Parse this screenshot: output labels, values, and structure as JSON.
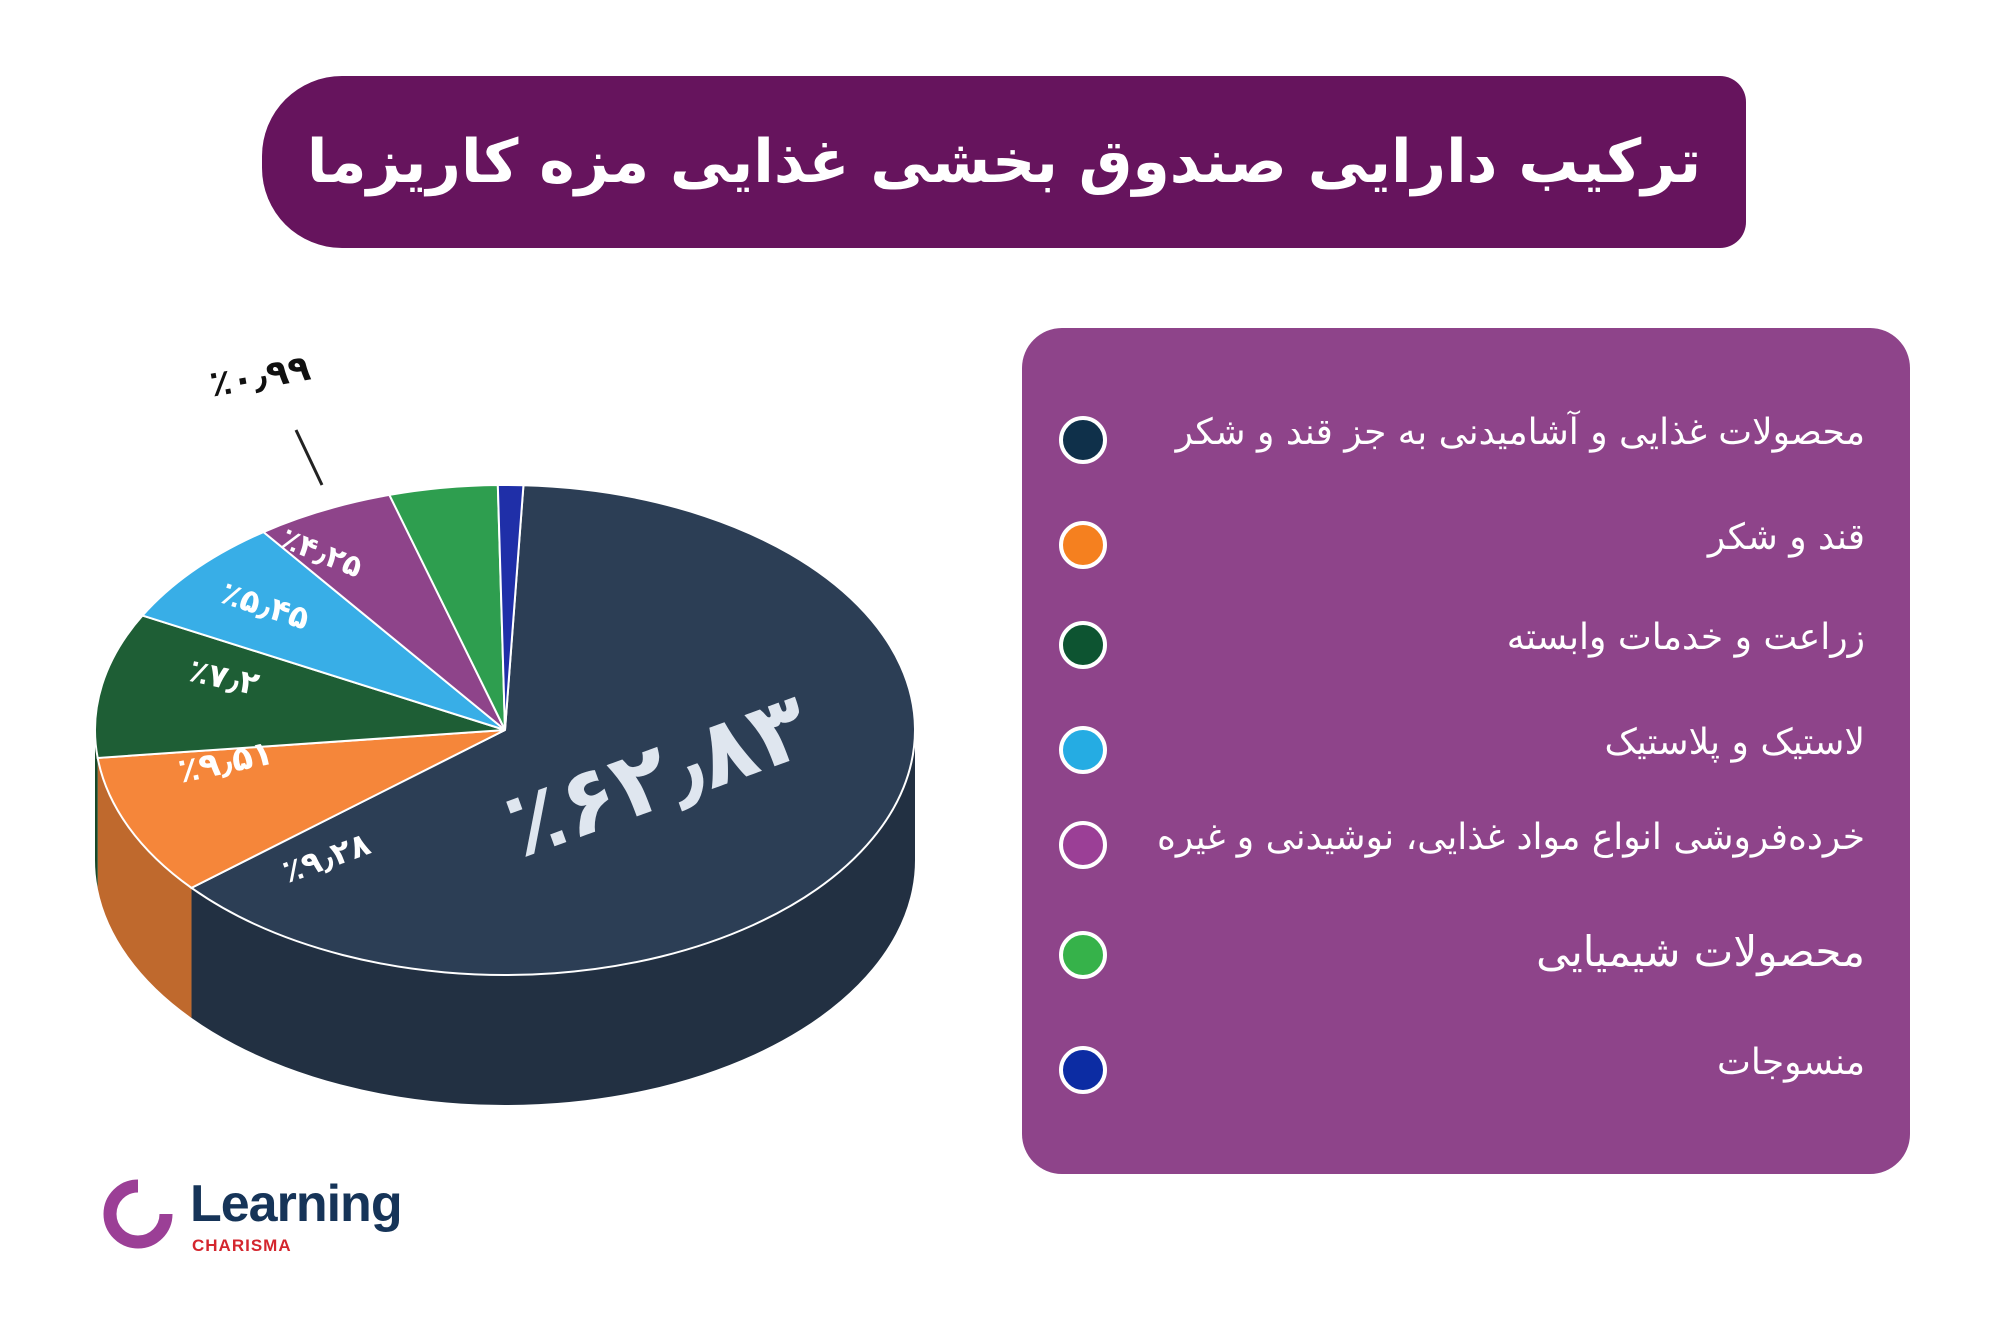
{
  "title": "ترکیب دارایی صندوق بخشی غذایی مزه کاریزما",
  "chart_data": {
    "type": "pie",
    "categories": [
      "محصولات غذایی و آشامیدنی به جز قند و شکر",
      "قند و شکر",
      "زراعت و خدمات وابسته",
      "لاستیک و پلاستیک",
      "خرده‌فروشی انواع مواد غذایی، نوشیدنی و غیره",
      "محصولات شیمیایی",
      "منسوجات"
    ],
    "values": [
      62.83,
      9.28,
      9.51,
      7.2,
      5.45,
      4.25,
      0.99
    ],
    "labels": [
      "٪۶۲٫۸۳",
      "٪۹٫۲۸",
      "٪۹٫۵۱",
      "٪۷٫۲",
      "٪۵٫۴۵",
      "٪۴٫۲۵",
      "٪۰٫۹۹"
    ],
    "colors": [
      "#2c3e55",
      "#f5863a",
      "#1e5e35",
      "#38aee7",
      "#8e448a",
      "#2e9e4f",
      "#1f2fa8"
    ],
    "legend_colors": [
      "#0f304a",
      "#f5801f",
      "#0d5431",
      "#25ace3",
      "#9b3f96",
      "#36b24a",
      "#0c2ca3"
    ],
    "legend_position": "right"
  },
  "legend": {
    "items": [
      {
        "label": "محصولات غذایی و آشامیدنی به جز قند و شکر"
      },
      {
        "label": "قند و شکر"
      },
      {
        "label": "زراعت و خدمات وابسته"
      },
      {
        "label": "لاستیک و پلاستیک"
      },
      {
        "label": "خرده‌فروشی انواع مواد غذایی، نوشیدنی و غیره"
      },
      {
        "label": "محصولات شیمیایی"
      },
      {
        "label": "منسوجات"
      }
    ]
  },
  "logo": {
    "name": "Learning",
    "sub": "CHARISMA"
  }
}
